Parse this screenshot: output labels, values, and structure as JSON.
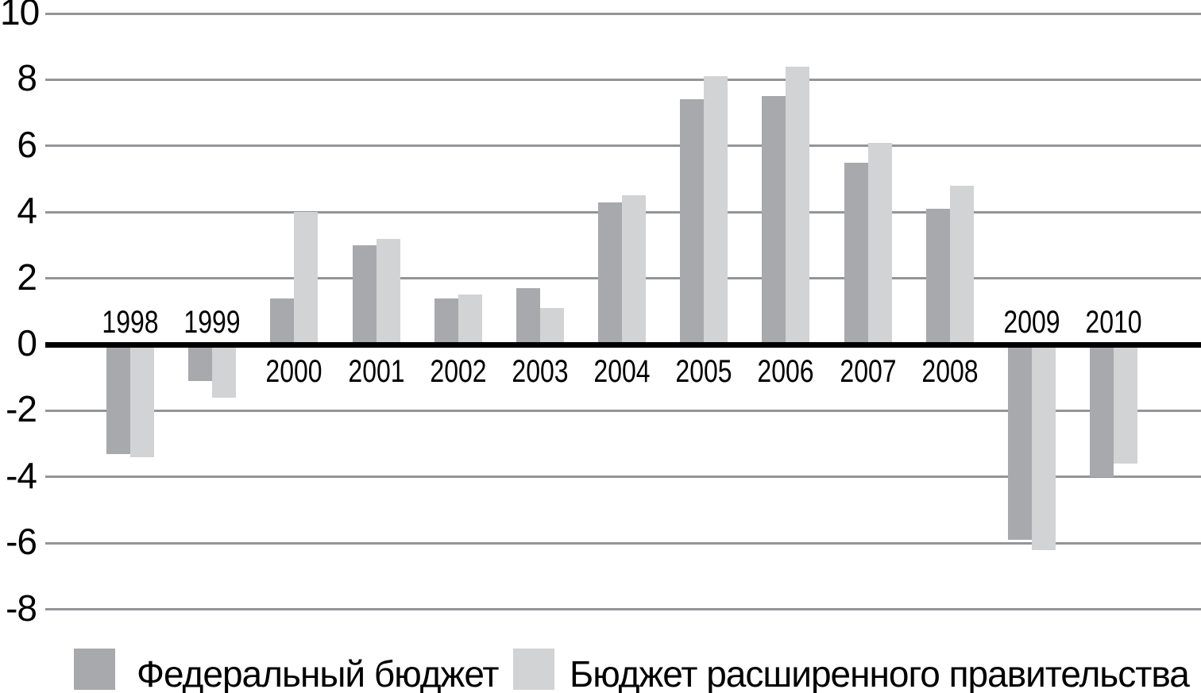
{
  "chart_data": {
    "type": "bar",
    "title": "",
    "xlabel": "",
    "ylabel": "",
    "categories": [
      "1998",
      "1999",
      "2000",
      "2001",
      "2002",
      "2003",
      "2004",
      "2005",
      "2006",
      "2007",
      "2008",
      "2009",
      "2010"
    ],
    "series": [
      {
        "name": "Федеральный бюджет",
        "color": "#a7a9ac",
        "values": [
          -3.3,
          -1.1,
          1.4,
          3.0,
          1.4,
          1.7,
          4.3,
          7.4,
          7.5,
          5.5,
          4.1,
          -5.9,
          -4.0
        ]
      },
      {
        "name": "Бюджет расширенного правительства",
        "color": "#d1d3d4",
        "values": [
          -3.4,
          -1.6,
          4.0,
          3.2,
          1.5,
          1.1,
          4.5,
          8.1,
          8.4,
          6.1,
          4.8,
          -6.2,
          -3.6
        ]
      }
    ],
    "ylim": [
      -8,
      10
    ],
    "yticks": [
      10,
      8,
      6,
      4,
      2,
      0,
      -2,
      -4,
      -6,
      -8
    ],
    "grid": true,
    "gridline_color": "#939598",
    "zero_line_color": "#000000",
    "text_color": "#000000",
    "background_color": "#ffffff",
    "legend_position": "bottom"
  }
}
